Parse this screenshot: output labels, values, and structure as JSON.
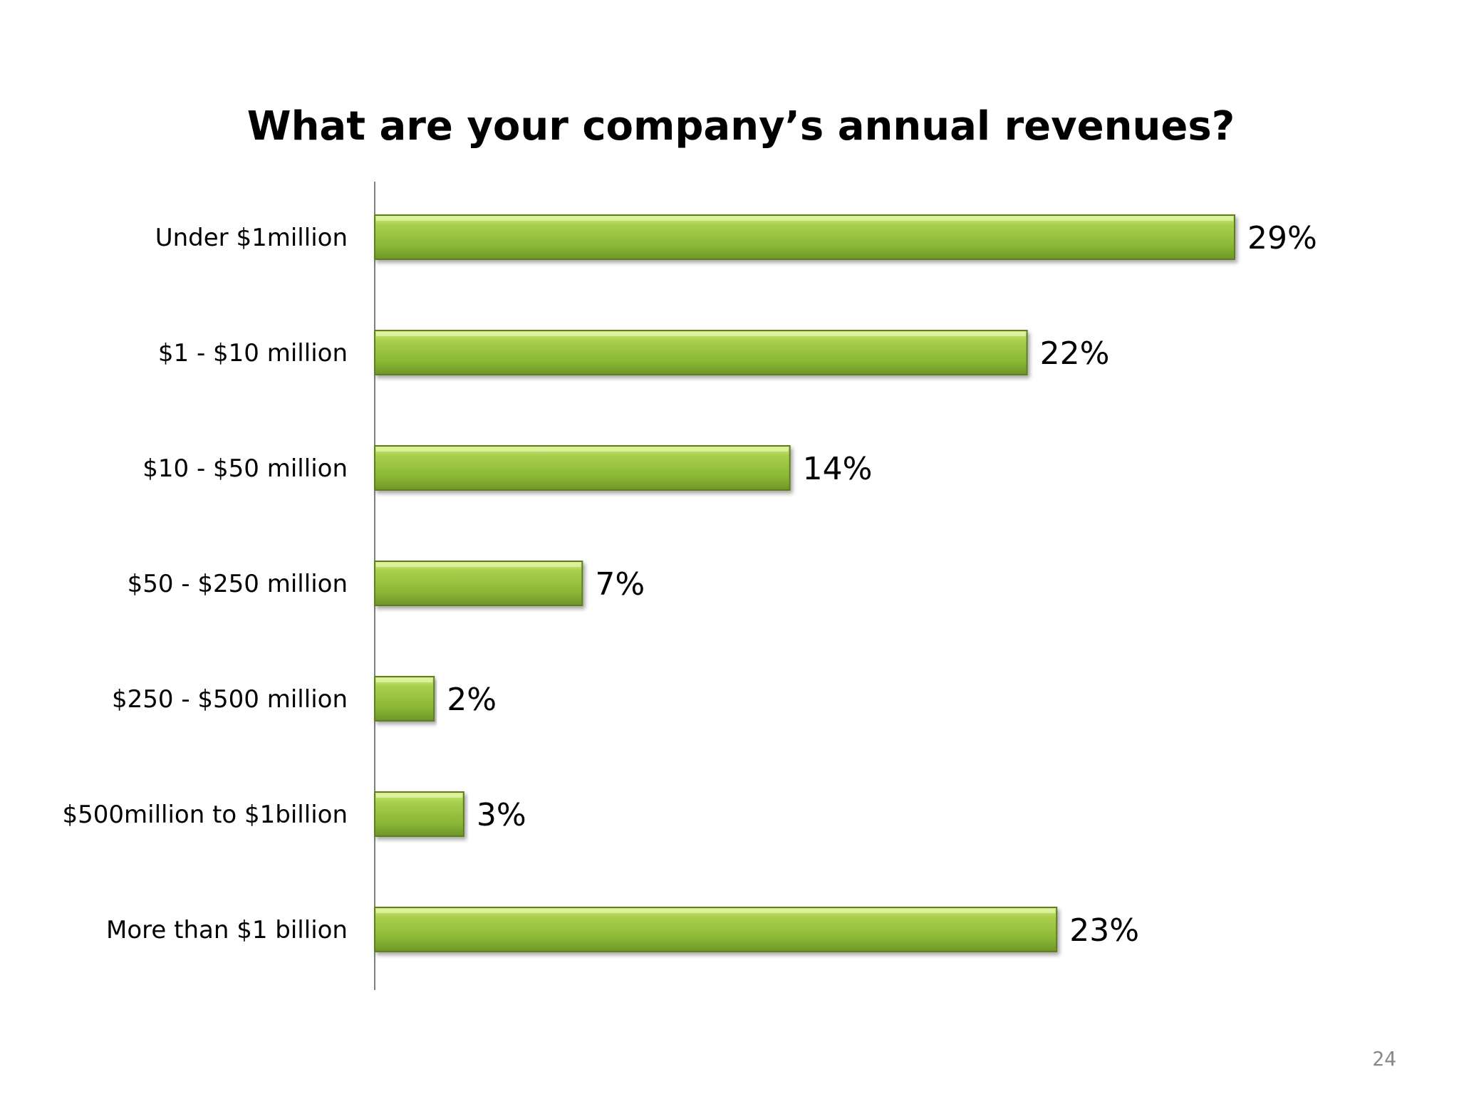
{
  "slide": {
    "page_number": "24"
  },
  "chart_data": {
    "type": "bar",
    "orientation": "horizontal",
    "title": "What are your company’s annual revenues?",
    "categories": [
      "Under $1million",
      "$1 - $10 million",
      "$10 - $50 million",
      "$50 - $250 million",
      "$250  - $500 million",
      "$500million to $1billion",
      "More than $1 billion"
    ],
    "values": [
      29,
      22,
      14,
      7,
      2,
      3,
      23
    ],
    "value_labels": [
      "29%",
      "22%",
      "14%",
      "7%",
      "2%",
      "3%",
      "23%"
    ],
    "unit": "%",
    "xlim": [
      0,
      30
    ],
    "grid": false,
    "legend": "none",
    "colors": {
      "bar_fill": "#8fb83c",
      "bar_highlight": "#c4e36e",
      "bar_edge": "#5e7e22",
      "axis": "#808080"
    }
  }
}
